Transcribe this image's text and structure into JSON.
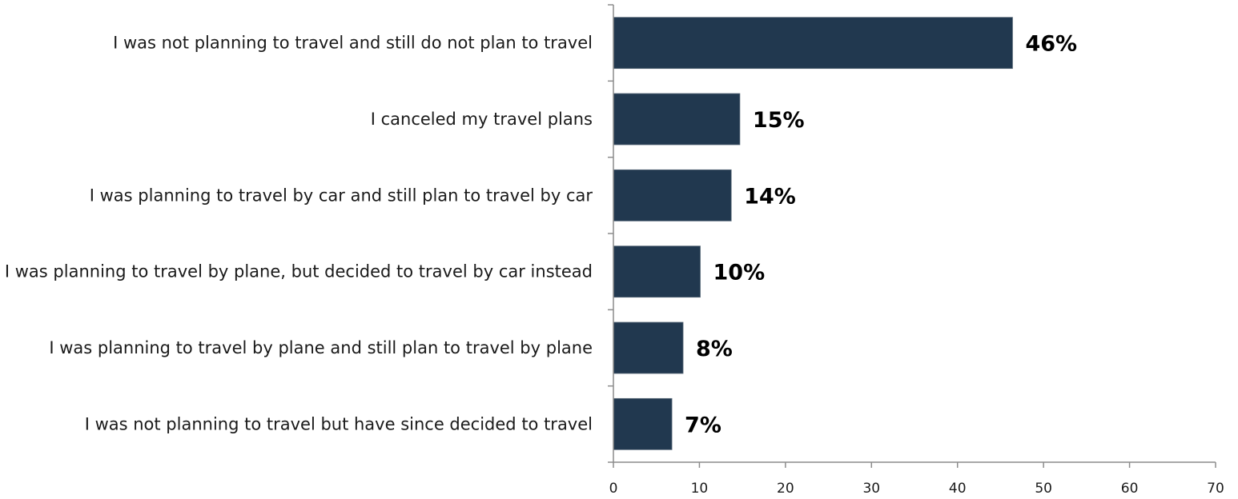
{
  "chart_data": {
    "type": "bar",
    "orientation": "horizontal",
    "categories": [
      "I was not planning to travel and still do not plan to travel",
      "I canceled my travel plans",
      "I was planning to travel by car and still plan to travel by car",
      "I was planning to travel by plane, but decided to travel by car instead",
      "I was planning to travel by plane and still plan to travel by plane",
      "I was not planning to travel but have since decided to travel"
    ],
    "values": [
      46.4,
      14.7,
      13.7,
      10.1,
      8.1,
      6.8
    ],
    "data_labels": [
      "46%",
      "15%",
      "14%",
      "10%",
      "8%",
      "7%"
    ],
    "title": "",
    "xlabel": "",
    "ylabel": "",
    "xlim": [
      0,
      70
    ],
    "x_ticks": [
      0,
      10,
      20,
      30,
      40,
      50,
      60,
      70
    ],
    "grid": false,
    "legend": "none",
    "bar_color": "#21384f"
  }
}
